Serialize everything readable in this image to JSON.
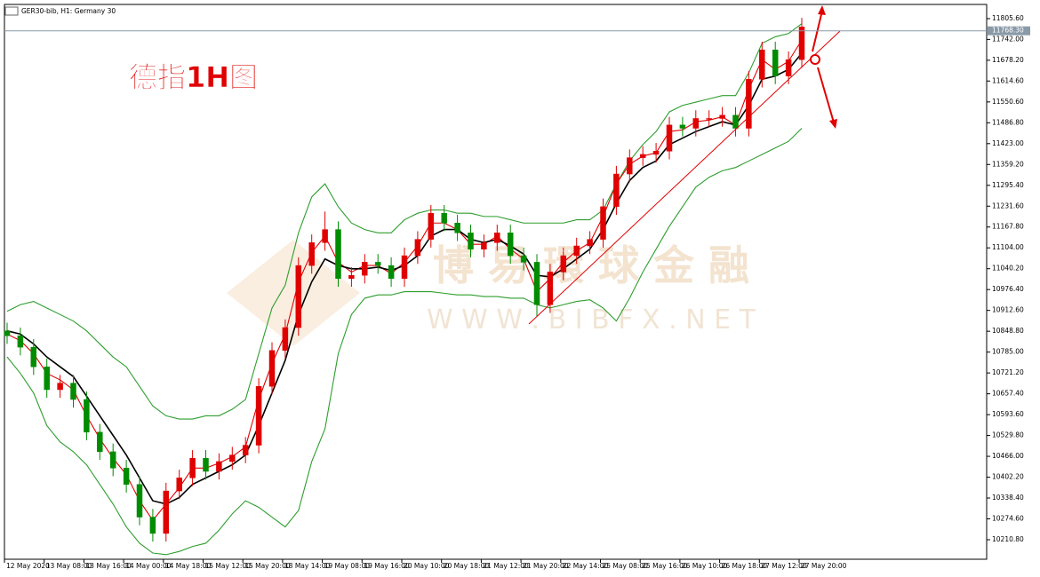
{
  "chart_data": {
    "type": "candlestick",
    "header": "GER30-bib, H1:  Germany 30",
    "title": "德指1H图",
    "watermark": "博 易 環 球 金 融",
    "watermark_url": "W W W . B I B F X . N E T",
    "categories": [
      "12 May 2020",
      null,
      null,
      "13 May 08:00",
      null,
      null,
      "13 May 16:00",
      null,
      null,
      "14 May 00:00",
      null,
      null,
      "14 May 18:00",
      null,
      null,
      "15 May 12:00",
      null,
      null,
      "15 May 20:00",
      null,
      null,
      "18 May 14:00",
      null,
      null,
      "19 May 08:00",
      null,
      null,
      "19 May 16:00",
      null,
      null,
      "20 May 10:00",
      null,
      null,
      "20 May 18:00",
      null,
      null,
      "21 May 12:00",
      null,
      null,
      "21 May 20:00",
      null,
      null,
      "22 May 14:00",
      null,
      null,
      "25 May 08:00",
      null,
      null,
      "25 May 16:00",
      null,
      null,
      "26 May 10:00",
      null,
      null,
      "26 May 18:00",
      null,
      null,
      "27 May 12:00",
      null,
      null,
      "27 May 20:00"
    ],
    "open": [
      10850,
      10835,
      10800,
      10740,
      10670,
      10690,
      10640,
      10540,
      10480,
      10430,
      10380,
      10280,
      10230,
      10360,
      10400,
      10460,
      10420,
      10450,
      10470,
      10500,
      10680,
      10790,
      10860,
      11050,
      11120,
      11160,
      11010,
      11020,
      11060,
      11050,
      11010,
      11080,
      11130,
      11210,
      11180,
      11150,
      11100,
      11120,
      11150,
      11080,
      11060,
      10930,
      11030,
      11080,
      11110,
      11130,
      11230,
      11330,
      11380,
      11390,
      11400,
      11480,
      11470,
      11500,
      11500,
      11510,
      11470,
      11620,
      11710,
      11630,
      11680
    ],
    "high": [
      10875,
      10860,
      10825,
      10765,
      10715,
      10715,
      10665,
      10565,
      10505,
      10455,
      10405,
      10305,
      10385,
      10425,
      10485,
      10485,
      10475,
      10495,
      10525,
      10705,
      10815,
      10885,
      11075,
      11145,
      11215,
      11185,
      11045,
      11085,
      11085,
      11075,
      11105,
      11155,
      11235,
      11235,
      11205,
      11175,
      11145,
      11175,
      11175,
      11105,
      11085,
      11055,
      11105,
      11135,
      11155,
      11255,
      11355,
      11405,
      11415,
      11425,
      11505,
      11505,
      11525,
      11525,
      11535,
      11535,
      11645,
      11735,
      11735,
      11705,
      11808
    ],
    "low": [
      10810,
      10775,
      10715,
      10645,
      10645,
      10615,
      10515,
      10455,
      10405,
      10355,
      10255,
      10205,
      10205,
      10335,
      10375,
      10395,
      10395,
      10425,
      10445,
      10475,
      10655,
      10765,
      10835,
      11025,
      11095,
      10985,
      10985,
      10995,
      11025,
      10985,
      10985,
      11055,
      11105,
      11155,
      11125,
      11075,
      11075,
      11095,
      11055,
      11035,
      10895,
      10905,
      11005,
      11055,
      11085,
      11105,
      11205,
      11305,
      11355,
      11365,
      11375,
      11445,
      11445,
      11475,
      11475,
      11445,
      11445,
      11595,
      11605,
      11605,
      11655
    ],
    "close": [
      10835,
      10800,
      10740,
      10670,
      10690,
      10640,
      10540,
      10480,
      10430,
      10380,
      10280,
      10230,
      10360,
      10400,
      10460,
      10420,
      10450,
      10470,
      10500,
      10680,
      10790,
      10860,
      11050,
      11120,
      11160,
      11010,
      11020,
      11060,
      11050,
      11010,
      11080,
      11130,
      11210,
      11180,
      11150,
      11100,
      11120,
      11150,
      11080,
      11060,
      10930,
      11030,
      11080,
      11110,
      11130,
      11230,
      11330,
      11380,
      11390,
      11400,
      11480,
      11470,
      11500,
      11500,
      11510,
      11470,
      11620,
      11710,
      11630,
      11680,
      11780
    ],
    "up_color": "#e00000",
    "down_color": "#008c00",
    "series": [
      {
        "color": "#2e9e2e",
        "values": [
          10910,
          10930,
          10940,
          10920,
          10900,
          10880,
          10850,
          10810,
          10770,
          10740,
          10680,
          10620,
          10590,
          10580,
          10580,
          10590,
          10590,
          10610,
          10640,
          10780,
          10920,
          10990,
          11150,
          11260,
          11300,
          11230,
          11180,
          11160,
          11150,
          11150,
          11190,
          11210,
          11220,
          11220,
          11210,
          11210,
          11200,
          11200,
          11190,
          11180,
          11180,
          11180,
          11180,
          11190,
          11190,
          11220,
          11300,
          11370,
          11420,
          11460,
          11520,
          11540,
          11550,
          11560,
          11570,
          11570,
          11640,
          11730,
          11750,
          11760,
          11790
        ]
      },
      {
        "color": "#2e9e2e",
        "values": [
          10770,
          10720,
          10660,
          10560,
          10510,
          10480,
          10440,
          10380,
          10320,
          10250,
          10200,
          10170,
          10165,
          10175,
          10190,
          10200,
          10240,
          10290,
          10330,
          10310,
          10280,
          10250,
          10300,
          10450,
          10550,
          10780,
          10900,
          10950,
          10960,
          10960,
          10970,
          10970,
          10970,
          10965,
          10960,
          10960,
          10955,
          10955,
          10950,
          10950,
          10930,
          10920,
          10930,
          10940,
          10945,
          10920,
          10880,
          10950,
          11030,
          11100,
          11170,
          11230,
          11290,
          11320,
          11340,
          11350,
          11370,
          11390,
          11410,
          11430,
          11470
        ]
      },
      {
        "color": "#e00000",
        "values": [
          10840,
          10820,
          10780,
          10720,
          10700,
          10670,
          10590,
          10520,
          10460,
          10410,
          10330,
          10270,
          10320,
          10370,
          10430,
          10430,
          10445,
          10465,
          10495,
          10640,
          10750,
          10840,
          11000,
          11090,
          11140,
          11060,
          11030,
          11050,
          11050,
          11025,
          11060,
          11110,
          11180,
          11180,
          11160,
          11115,
          11115,
          11140,
          11100,
          11070,
          10970,
          11010,
          11060,
          11095,
          11120,
          11200,
          11300,
          11360,
          11385,
          11395,
          11460,
          11465,
          11490,
          11495,
          11505,
          11480,
          11590,
          11680,
          11650,
          11675,
          11740
        ]
      },
      {
        "color": "#000000",
        "values": [
          10850,
          10840,
          10810,
          10770,
          10740,
          10710,
          10650,
          10590,
          10530,
          10470,
          10400,
          10330,
          10320,
          10340,
          10380,
          10400,
          10420,
          10440,
          10470,
          10560,
          10660,
          10760,
          10900,
          11000,
          11070,
          11050,
          11040,
          11040,
          11045,
          11035,
          11050,
          11080,
          11140,
          11160,
          11160,
          11130,
          11120,
          11130,
          11110,
          11085,
          11020,
          11015,
          11040,
          11070,
          11100,
          11160,
          11240,
          11310,
          11350,
          11370,
          11420,
          11440,
          11460,
          11475,
          11490,
          11480,
          11540,
          11620,
          11630,
          11650,
          11700
        ]
      }
    ],
    "current_price": {
      "value": 11768.3,
      "label": "11768.30"
    },
    "ylim": [
      10151,
      11849
    ],
    "yticks": [
      {
        "value": 10210.8,
        "label": "10210.80"
      },
      {
        "value": 10274.6,
        "label": "10274.60"
      },
      {
        "value": 10338.4,
        "label": "10338.40"
      },
      {
        "value": 10402.2,
        "label": "10402.20"
      },
      {
        "value": 10466,
        "label": "10466.00"
      },
      {
        "value": 10529.8,
        "label": "10529.80"
      },
      {
        "value": 10593.6,
        "label": "10593.60"
      },
      {
        "value": 10657.4,
        "label": "10657.40"
      },
      {
        "value": 10721.2,
        "label": "10721.20"
      },
      {
        "value": 10785,
        "label": "10785.00"
      },
      {
        "value": 10848.8,
        "label": "10848.80"
      },
      {
        "value": 10912.6,
        "label": "10912.60"
      },
      {
        "value": 10976.4,
        "label": "10976.40"
      },
      {
        "value": 11040.2,
        "label": "11040.20"
      },
      {
        "value": 11104,
        "label": "11104.00"
      },
      {
        "value": 11167.8,
        "label": "11167.80"
      },
      {
        "value": 11231.6,
        "label": "11231.60"
      },
      {
        "value": 11295.4,
        "label": "11295.40"
      },
      {
        "value": 11359.2,
        "label": "11359.20"
      },
      {
        "value": 11423,
        "label": "11423.00"
      },
      {
        "value": 11486.8,
        "label": "11486.80"
      },
      {
        "value": 11550.6,
        "label": "11550.60"
      },
      {
        "value": 11614.6,
        "label": "11614.60"
      },
      {
        "value": 11678.2,
        "label": "11678.20"
      },
      {
        "value": 11742,
        "label": "11742.00"
      },
      {
        "value": 11805.6,
        "label": "11805.60"
      }
    ]
  }
}
